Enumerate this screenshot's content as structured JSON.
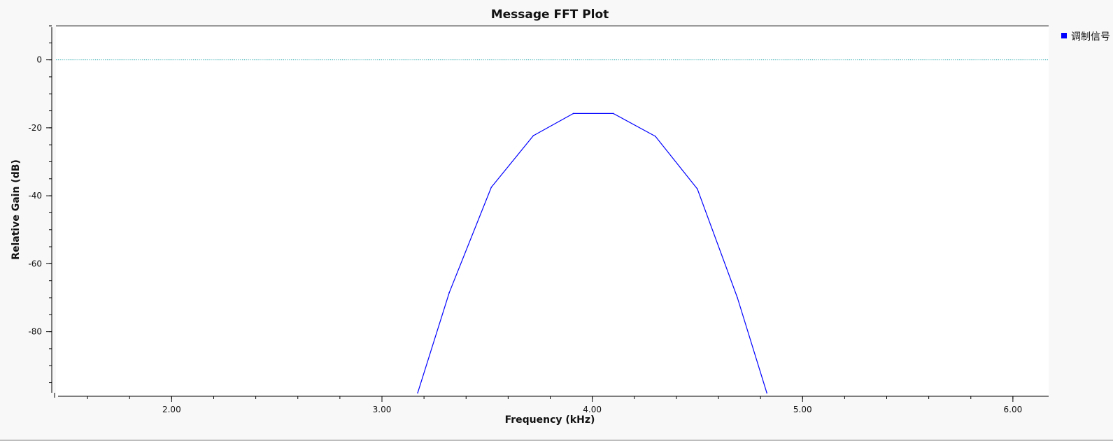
{
  "chart_data": {
    "type": "line",
    "title": "Message FFT Plot",
    "xlabel": "Frequency (kHz)",
    "ylabel": "Relative Gain (dB)",
    "xlim": [
      1.45,
      6.17
    ],
    "ylim": [
      -99,
      10
    ],
    "x_ticks": [
      2.0,
      3.0,
      4.0,
      5.0,
      6.0
    ],
    "x_tick_labels": [
      "2.00",
      "3.00",
      "4.00",
      "5.00",
      "6.00"
    ],
    "x_minor_step": 0.2,
    "y_ticks": [
      0,
      -20,
      -40,
      -60,
      -80
    ],
    "y_tick_labels": [
      "0",
      "-20",
      "-40",
      "-60",
      "-80"
    ],
    "y_minor_step": 5,
    "reference_line": {
      "y": 0,
      "color": "#17a1a5",
      "style": "dotted"
    },
    "grid": false,
    "legend_position": "top-right",
    "series": [
      {
        "name": "调制信号",
        "color": "#0000ff",
        "x": [
          3.17,
          3.32,
          3.52,
          3.72,
          3.91,
          4.1,
          4.3,
          4.5,
          4.69,
          4.83
        ],
        "y": [
          -98,
          -68.5,
          -37.5,
          -22.3,
          -15.8,
          -15.8,
          -22.5,
          -38,
          -70,
          -98
        ]
      }
    ]
  }
}
